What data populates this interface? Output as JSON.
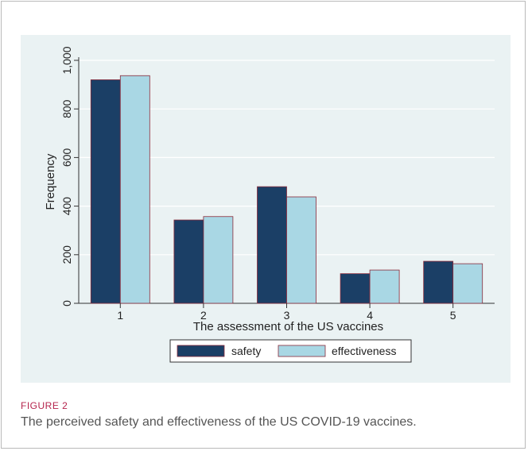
{
  "figure": {
    "label": "FIGURE 2",
    "caption": "The perceived safety and effectiveness of the US COVID-19 vaccines."
  },
  "colors": {
    "panel_bg": "#eaf2f3",
    "safety": "#1b3f66",
    "effectiveness": "#a9d7e4",
    "bar_edge": "#8a2a3a",
    "grid": "#ffffff",
    "figure_label": "#b5244d"
  },
  "chart_data": {
    "type": "bar",
    "categories": [
      "1",
      "2",
      "3",
      "4",
      "5"
    ],
    "series": [
      {
        "name": "safety",
        "values": [
          920,
          343,
          480,
          122,
          173
        ]
      },
      {
        "name": "effectiveness",
        "values": [
          937,
          357,
          438,
          137,
          163
        ]
      }
    ],
    "xlabel": "The assessment of the US vaccines",
    "ylabel": "Frequency",
    "ylim": [
      0,
      1000
    ],
    "yticks": [
      0,
      200,
      400,
      600,
      800,
      1000
    ],
    "ytick_labels": [
      "0",
      "200",
      "400",
      "600",
      "800",
      "1,000"
    ],
    "grid": true,
    "legend_position": "bottom"
  }
}
